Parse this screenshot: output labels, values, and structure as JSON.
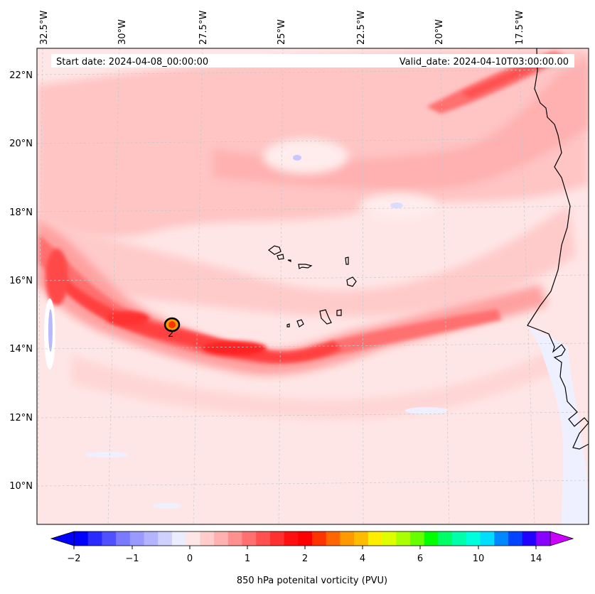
{
  "map": {
    "header": {
      "start_date": "Start date: 2024-04-08_00:00:00",
      "valid_date": "Valid_date: 2024-04-10T03:00:00.00"
    },
    "lon_labels": [
      "32.5°W",
      "30°W",
      "27.5°W",
      "25°W",
      "22.5°W",
      "20°W",
      "17.5°W"
    ],
    "lat_labels": [
      "22°N",
      "20°N",
      "18°N",
      "16°N",
      "14°N",
      "12°N",
      "10°N"
    ],
    "contour_label": "2",
    "colorbar": {
      "tick_labels": [
        "−2",
        "−1",
        "0",
        "1",
        "2",
        "4",
        "6",
        "10",
        "14"
      ],
      "label": "850 hPa potenital vorticity (PVU)",
      "colors": [
        "#0000ff",
        "#2a2aff",
        "#5050ff",
        "#7a7aff",
        "#9999ff",
        "#b3b3ff",
        "#d0d0ff",
        "#ececff",
        "#ffe6e6",
        "#ffcccc",
        "#ffb0b0",
        "#ff9090",
        "#ff7070",
        "#ff5050",
        "#ff3030",
        "#ff1010",
        "#ff0000",
        "#ff3300",
        "#ff6600",
        "#ff9900",
        "#ffbb00",
        "#ffee00",
        "#ddff00",
        "#aaff00",
        "#66ff00",
        "#00ff00",
        "#00ff66",
        "#00ffaa",
        "#00ffdd",
        "#00ddff",
        "#0088ff",
        "#0044ff",
        "#2200ff",
        "#8800ff"
      ],
      "extend_min_color": "#0000ff",
      "extend_max_color": "#cc00ff"
    }
  }
}
